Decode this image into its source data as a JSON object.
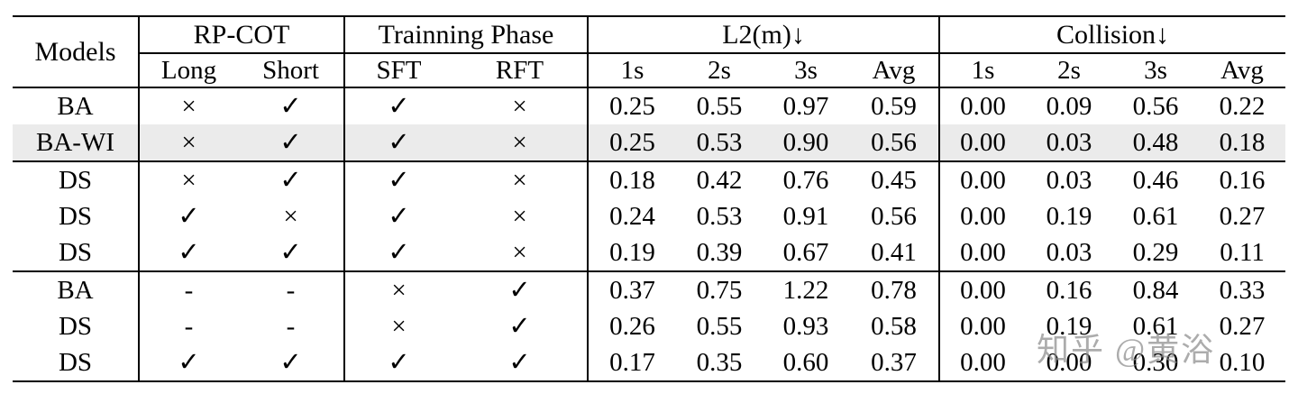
{
  "watermark": {
    "text": "知乎 @黄浴"
  },
  "table": {
    "header": {
      "models": "Models",
      "groups": [
        {
          "label": "RP-COT",
          "cols": [
            "Long",
            "Short"
          ]
        },
        {
          "label": "Trainning Phase",
          "cols": [
            "SFT",
            "RFT"
          ]
        },
        {
          "label": "L2(m)↓",
          "cols": [
            "1s",
            "2s",
            "3s",
            "Avg"
          ]
        },
        {
          "label": "Collision↓",
          "cols": [
            "1s",
            "2s",
            "3s",
            "Avg"
          ]
        }
      ]
    },
    "rows": [
      {
        "model": "BA",
        "highlight": false,
        "section_start": false,
        "cells": [
          "×",
          "✓",
          "✓",
          "×",
          "0.25",
          "0.55",
          "0.97",
          "0.59",
          "0.00",
          "0.09",
          "0.56",
          "0.22"
        ]
      },
      {
        "model": "BA-WI",
        "highlight": true,
        "section_start": false,
        "cells": [
          "×",
          "✓",
          "✓",
          "×",
          "0.25",
          "0.53",
          "0.90",
          "0.56",
          "0.00",
          "0.03",
          "0.48",
          "0.18"
        ]
      },
      {
        "model": "DS",
        "highlight": false,
        "section_start": true,
        "cells": [
          "×",
          "✓",
          "✓",
          "×",
          "0.18",
          "0.42",
          "0.76",
          "0.45",
          "0.00",
          "0.03",
          "0.46",
          "0.16"
        ]
      },
      {
        "model": "DS",
        "highlight": false,
        "section_start": false,
        "cells": [
          "✓",
          "×",
          "✓",
          "×",
          "0.24",
          "0.53",
          "0.91",
          "0.56",
          "0.00",
          "0.19",
          "0.61",
          "0.27"
        ]
      },
      {
        "model": "DS",
        "highlight": false,
        "section_start": false,
        "cells": [
          "✓",
          "✓",
          "✓",
          "×",
          "0.19",
          "0.39",
          "0.67",
          "0.41",
          "0.00",
          "0.03",
          "0.29",
          "0.11"
        ]
      },
      {
        "model": "BA",
        "highlight": false,
        "section_start": true,
        "cells": [
          "-",
          "-",
          "×",
          "✓",
          "0.37",
          "0.75",
          "1.22",
          "0.78",
          "0.00",
          "0.16",
          "0.84",
          "0.33"
        ]
      },
      {
        "model": "DS",
        "highlight": false,
        "section_start": false,
        "cells": [
          "-",
          "-",
          "×",
          "✓",
          "0.26",
          "0.55",
          "0.93",
          "0.58",
          "0.00",
          "0.19",
          "0.61",
          "0.27"
        ]
      },
      {
        "model": "DS",
        "highlight": false,
        "section_start": false,
        "cells": [
          "✓",
          "✓",
          "✓",
          "✓",
          "0.17",
          "0.35",
          "0.60",
          "0.37",
          "0.00",
          "0.00",
          "0.30",
          "0.10"
        ]
      }
    ]
  }
}
